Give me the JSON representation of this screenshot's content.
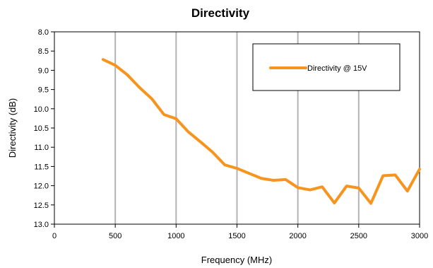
{
  "chart_data": {
    "type": "line",
    "title": "Directivity",
    "xlabel": "Frequency (MHz)",
    "ylabel": "Directivity (dB)",
    "xlim": [
      0,
      3000
    ],
    "ylim": [
      8.0,
      13.0
    ],
    "y_inverted": true,
    "x_ticks": [
      "0",
      "500",
      "1000",
      "1500",
      "2000",
      "2500",
      "3000"
    ],
    "y_ticks": [
      "8.0",
      "8.5",
      "9.0",
      "9.5",
      "10.0",
      "10.5",
      "11.0",
      "11.5",
      "12.0",
      "12.5",
      "13.0"
    ],
    "grid": "vertical major gridlines",
    "legend_position": "top-right",
    "series": [
      {
        "name": "Directivity @  15V",
        "color": "#F7941D",
        "x": [
          400,
          500,
          600,
          700,
          800,
          900,
          1000,
          1100,
          1200,
          1300,
          1400,
          1500,
          1600,
          1700,
          1800,
          1900,
          2000,
          2100,
          2200,
          2300,
          2400,
          2500,
          2600,
          2700,
          2800,
          2900,
          3000
        ],
        "y": [
          8.72,
          8.87,
          9.12,
          9.45,
          9.74,
          10.15,
          10.26,
          10.6,
          10.86,
          11.13,
          11.46,
          11.55,
          11.68,
          11.81,
          11.86,
          11.84,
          12.05,
          12.11,
          12.03,
          12.45,
          12.01,
          12.06,
          12.46,
          11.74,
          11.72,
          12.14,
          11.57
        ]
      }
    ]
  }
}
